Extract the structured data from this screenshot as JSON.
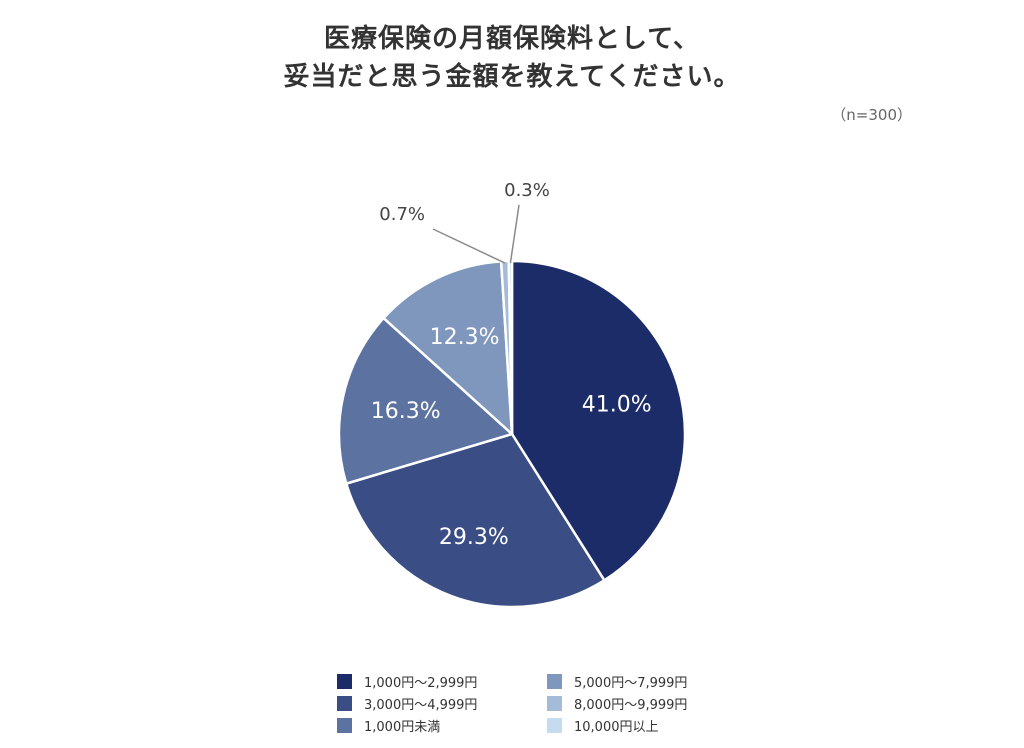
{
  "title_lines": [
    "医療保険の月額保険料として、",
    "妥当だと思う金額を教えてください。"
  ],
  "sample_size": "（n=300）",
  "chart_data": {
    "type": "pie",
    "title": "医療保険の月額保険料として、妥当だと思う金額を教えてください。",
    "start_angle_deg": 0,
    "direction": "clockwise",
    "slices": [
      {
        "label": "1,000円〜2,999円",
        "value": 41.0,
        "display": "41.0%",
        "color": "#1c2c68"
      },
      {
        "label": "3,000円〜4,999円",
        "value": 29.3,
        "display": "29.3%",
        "color": "#3a4e85"
      },
      {
        "label": "1,000円未満",
        "value": 16.3,
        "display": "16.3%",
        "color": "#5c73a1"
      },
      {
        "label": "5,000円〜7,999円",
        "value": 12.3,
        "display": "12.3%",
        "color": "#7f97bd"
      },
      {
        "label": "8,000円〜9,999円",
        "value": 0.7,
        "display": "0.7%",
        "color": "#a4bcd8"
      },
      {
        "label": "10,000円以上",
        "value": 0.3,
        "display": "0.3%",
        "color": "#c4dcee"
      }
    ],
    "legend_position": "bottom"
  }
}
